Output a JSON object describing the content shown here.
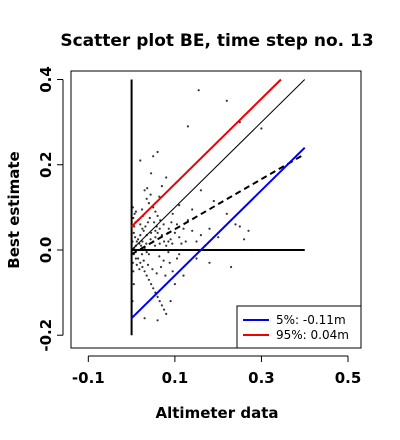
{
  "chart_data": {
    "type": "scatter",
    "title": "Scatter plot BE, time step no. 13",
    "xlabel": "Altimeter data",
    "ylabel": "Best estimate",
    "xlim": [
      -0.14,
      0.53
    ],
    "ylim": [
      -0.23,
      0.42
    ],
    "xticks": [
      -0.1,
      0.1,
      0.3,
      0.5
    ],
    "xtick_labels": [
      "-0.1",
      "0.1",
      "0.3",
      "0.5"
    ],
    "yticks": [
      -0.2,
      0.0,
      0.2,
      0.4
    ],
    "ytick_labels": [
      "-0.2",
      "0.0",
      "0.2",
      "0.4"
    ],
    "grid": false,
    "legend_position": "bottom-right",
    "reference_lines": [
      {
        "name": "x = 0",
        "x": [
          0,
          0
        ],
        "y": [
          -0.2,
          0.4
        ],
        "color": "#000000",
        "width": 2,
        "dash": "solid"
      },
      {
        "name": "y = 0",
        "x": [
          0,
          0.4
        ],
        "y": [
          0,
          0
        ],
        "color": "#000000",
        "width": 2,
        "dash": "solid"
      },
      {
        "name": "y = x",
        "x": [
          0,
          0.4
        ],
        "y": [
          0,
          0.4
        ],
        "color": "#000000",
        "width": 1,
        "dash": "solid"
      },
      {
        "name": "regression",
        "x": [
          0,
          0.4
        ],
        "y": [
          -0.01,
          0.225
        ],
        "color": "#000000",
        "width": 2,
        "dash": "dashed"
      },
      {
        "name": "5%",
        "x": [
          0,
          0.4
        ],
        "y": [
          -0.16,
          0.24
        ],
        "color": "#0000ee",
        "width": 2,
        "dash": "solid"
      },
      {
        "name": "95%",
        "x": [
          0,
          0.345
        ],
        "y": [
          0.055,
          0.4
        ],
        "color": "#ee0000",
        "width": 2,
        "dash": "solid"
      }
    ],
    "legend": [
      {
        "label": "5%: -0.11m",
        "color": "#0000ee"
      },
      {
        "label": "95%:  0.04m",
        "color": "#ee0000"
      }
    ],
    "points": [
      [
        0.155,
        0.375
      ],
      [
        0.13,
        0.29
      ],
      [
        0.22,
        0.35
      ],
      [
        0.25,
        0.3
      ],
      [
        0.3,
        0.285
      ],
      [
        0.06,
        0.23
      ],
      [
        0.05,
        0.22
      ],
      [
        0.02,
        0.21
      ],
      [
        0.045,
        0.18
      ],
      [
        0.08,
        0.17
      ],
      [
        0.07,
        0.15
      ],
      [
        0.16,
        0.14
      ],
      [
        0.19,
        0.115
      ],
      [
        0.14,
        0.095
      ],
      [
        0.22,
        0.085
      ],
      [
        0.25,
        0.055
      ],
      [
        0.27,
        0.045
      ],
      [
        0.26,
        0.025
      ],
      [
        0.11,
        0.105
      ],
      [
        0.095,
        0.085
      ],
      [
        0.03,
        0.14
      ],
      [
        0.035,
        0.12
      ],
      [
        0.04,
        0.11
      ],
      [
        0.05,
        0.1
      ],
      [
        0.055,
        0.09
      ],
      [
        0.06,
        0.08
      ],
      [
        0.01,
        0.09
      ],
      [
        0.015,
        0.07
      ],
      [
        0.02,
        0.06
      ],
      [
        0.025,
        0.05
      ],
      [
        0.005,
        0.04
      ],
      [
        0.008,
        0.03
      ],
      [
        0.012,
        0.02
      ],
      [
        0.018,
        0.015
      ],
      [
        0.022,
        0.01
      ],
      [
        0.03,
        0.005
      ],
      [
        0.035,
        -0.005
      ],
      [
        0.04,
        -0.01
      ],
      [
        0.045,
        0.0
      ],
      [
        0.05,
        0.02
      ],
      [
        0.055,
        0.03
      ],
      [
        0.06,
        0.04
      ],
      [
        0.065,
        0.05
      ],
      [
        0.07,
        0.035
      ],
      [
        0.075,
        0.02
      ],
      [
        0.08,
        0.01
      ],
      [
        0.085,
        -0.005
      ],
      [
        0.09,
        0.025
      ],
      [
        0.1,
        0.04
      ],
      [
        0.105,
        0.06
      ],
      [
        0.11,
        0.03
      ],
      [
        0.12,
        0.05
      ],
      [
        0.125,
        0.02
      ],
      [
        0.13,
        0.07
      ],
      [
        0.14,
        0.045
      ],
      [
        0.015,
        -0.02
      ],
      [
        0.02,
        -0.03
      ],
      [
        0.025,
        -0.04
      ],
      [
        0.03,
        -0.05
      ],
      [
        0.035,
        -0.06
      ],
      [
        0.04,
        -0.07
      ],
      [
        0.045,
        -0.08
      ],
      [
        0.05,
        -0.09
      ],
      [
        0.055,
        -0.1
      ],
      [
        0.06,
        -0.11
      ],
      [
        0.065,
        -0.12
      ],
      [
        0.07,
        -0.13
      ],
      [
        0.075,
        -0.14
      ],
      [
        0.08,
        -0.15
      ],
      [
        0.005,
        -0.01
      ],
      [
        0.01,
        -0.02
      ],
      [
        0.012,
        -0.035
      ],
      [
        0.018,
        -0.045
      ],
      [
        0.028,
        -0.025
      ],
      [
        0.038,
        -0.035
      ],
      [
        0.048,
        -0.045
      ],
      [
        0.058,
        -0.055
      ],
      [
        0.068,
        -0.04
      ],
      [
        0.078,
        -0.06
      ],
      [
        0.088,
        -0.03
      ],
      [
        0.095,
        -0.05
      ],
      [
        0.105,
        -0.02
      ],
      [
        0.015,
        0.025
      ],
      [
        0.02,
        0.035
      ],
      [
        0.028,
        0.045
      ],
      [
        0.032,
        0.055
      ],
      [
        0.038,
        0.065
      ],
      [
        0.042,
        0.075
      ],
      [
        0.052,
        0.065
      ],
      [
        0.058,
        0.055
      ],
      [
        0.066,
        0.07
      ],
      [
        0.074,
        0.06
      ],
      [
        0.086,
        0.05
      ],
      [
        0.092,
        0.065
      ],
      [
        0.006,
        0.055
      ],
      [
        0.009,
        0.065
      ],
      [
        0.004,
        0.075
      ],
      [
        0.007,
        0.085
      ],
      [
        0.003,
        0.1
      ],
      [
        0.026,
        0.08
      ],
      [
        0.024,
        0.095
      ],
      [
        0.044,
        0.13
      ],
      [
        0.036,
        0.145
      ],
      [
        0.064,
        0.125
      ],
      [
        0.01,
        0.01
      ],
      [
        0.016,
        0.0
      ],
      [
        0.024,
        -0.01
      ],
      [
        0.034,
        0.015
      ],
      [
        0.044,
        0.025
      ],
      [
        0.054,
        0.01
      ],
      [
        0.064,
        -0.015
      ],
      [
        0.074,
        -0.025
      ],
      [
        0.084,
        0.04
      ],
      [
        0.094,
        0.015
      ],
      [
        0.15,
        0.02
      ],
      [
        0.16,
        0.035
      ],
      [
        0.17,
        0.01
      ],
      [
        0.18,
        0.05
      ],
      [
        0.2,
        0.03
      ],
      [
        0.24,
        0.06
      ],
      [
        0.28,
        0.0
      ],
      [
        0.23,
        -0.04
      ],
      [
        0.18,
        -0.03
      ],
      [
        0.15,
        -0.02
      ],
      [
        0.12,
        -0.06
      ],
      [
        0.1,
        -0.08
      ],
      [
        0.09,
        -0.12
      ],
      [
        0.06,
        -0.165
      ],
      [
        0.03,
        -0.16
      ],
      [
        0.005,
        -0.08
      ],
      [
        0.002,
        -0.12
      ],
      [
        0.004,
        -0.05
      ],
      [
        0.002,
        0.02
      ],
      [
        0.003,
        -0.03
      ],
      [
        0.006,
        0.005
      ],
      [
        0.045,
        0.04
      ],
      [
        0.055,
        0.045
      ],
      [
        0.035,
        0.035
      ],
      [
        0.025,
        0.02
      ],
      [
        0.065,
        0.015
      ],
      [
        0.075,
        0.0
      ],
      [
        0.085,
        0.02
      ],
      [
        0.1,
        0.0
      ],
      [
        0.11,
        -0.01
      ],
      [
        0.115,
        0.015
      ]
    ]
  }
}
